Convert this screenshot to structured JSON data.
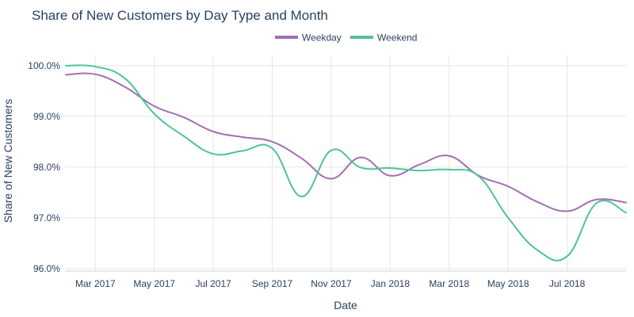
{
  "chart_data": {
    "type": "line",
    "title": "Share of New Customers by Day Type and Month",
    "xlabel": "Date",
    "ylabel": "Share of New Customers",
    "x": [
      "2017-02",
      "2017-03",
      "2017-04",
      "2017-05",
      "2017-06",
      "2017-07",
      "2017-08",
      "2017-09",
      "2017-10",
      "2017-11",
      "2017-12",
      "2018-01",
      "2018-02",
      "2018-03",
      "2018-04",
      "2018-05",
      "2018-06",
      "2018-07",
      "2018-08",
      "2018-09"
    ],
    "x_tick_labels": [
      "Mar 2017",
      "May 2017",
      "Jul 2017",
      "Sep 2017",
      "Nov 2017",
      "Jan 2018",
      "Mar 2018",
      "May 2018",
      "Jul 2018"
    ],
    "x_tick_months": [
      "2017-03",
      "2017-05",
      "2017-07",
      "2017-09",
      "2017-11",
      "2018-01",
      "2018-03",
      "2018-05",
      "2018-07"
    ],
    "y_tick_values": [
      96.0,
      97.0,
      98.0,
      99.0,
      100.0
    ],
    "y_tick_labels": [
      "96.0%",
      "97.0%",
      "98.0%",
      "99.0%",
      "100.0%"
    ],
    "ylim": [
      95.95,
      100.2
    ],
    "xlim_months": [
      -0.03,
      19.0
    ],
    "series": [
      {
        "name": "Weekday",
        "color": "#a26fb3",
        "values": [
          99.82,
          99.83,
          99.58,
          99.2,
          98.98,
          98.7,
          98.59,
          98.5,
          98.17,
          97.77,
          98.19,
          97.83,
          98.05,
          98.22,
          97.83,
          97.62,
          97.31,
          97.13,
          97.36,
          97.3
        ]
      },
      {
        "name": "Weekend",
        "color": "#4fc19c",
        "values": [
          100.0,
          99.98,
          99.75,
          99.05,
          98.61,
          98.26,
          98.32,
          98.37,
          97.42,
          98.33,
          97.99,
          97.98,
          97.93,
          97.95,
          97.82,
          97.0,
          96.36,
          96.24,
          97.29,
          97.1
        ]
      }
    ],
    "legend_position": "top-center",
    "grid": true
  }
}
